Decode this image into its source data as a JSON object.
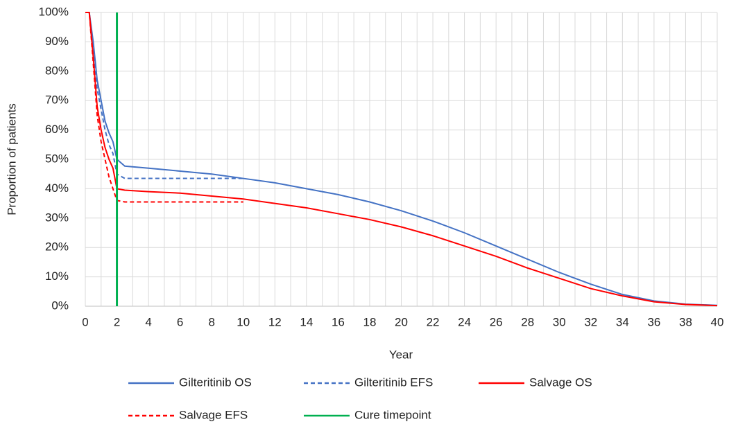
{
  "chart_data": {
    "type": "line",
    "x_label": "Year",
    "y_label": "Proportion of patients",
    "x": [
      0,
      0.25,
      0.5,
      0.75,
      1,
      1.25,
      1.5,
      1.75,
      2,
      2.5,
      4,
      6,
      8,
      10,
      12,
      14,
      16,
      18,
      20,
      22,
      24,
      26,
      28,
      30,
      32,
      34,
      36,
      38,
      40
    ],
    "series": [
      {
        "name": "Gilteritinib OS",
        "color": "#4472c4",
        "dash": false,
        "values": [
          100,
          100,
          90,
          77,
          70,
          63,
          59,
          56,
          50,
          47.7,
          47,
          46,
          45,
          43.5,
          42,
          40,
          38,
          35.5,
          32.5,
          29,
          25,
          20.5,
          16,
          11.5,
          7.5,
          4,
          1.8,
          0.7,
          0.3
        ]
      },
      {
        "name": "Gilteritinib EFS",
        "color": "#4472c4",
        "dash": true,
        "values": [
          100,
          100,
          88,
          74,
          67,
          60,
          55,
          52,
          45,
          43.5,
          43.5,
          43.5,
          43.5,
          43.5,
          null,
          null,
          null,
          null,
          null,
          null,
          null,
          null,
          null,
          null,
          null,
          null,
          null,
          null,
          null
        ]
      },
      {
        "name": "Salvage OS",
        "color": "#ff0000",
        "dash": false,
        "values": [
          100,
          100,
          85,
          68,
          60,
          54,
          50,
          47,
          40,
          39.5,
          39,
          38.5,
          37.5,
          36.5,
          35,
          33.5,
          31.5,
          29.5,
          27,
          24,
          20.5,
          17,
          13,
          9.5,
          6,
          3.5,
          1.5,
          0.6,
          0.2
        ]
      },
      {
        "name": "Salvage EFS",
        "color": "#ff0000",
        "dash": true,
        "values": [
          100,
          100,
          83,
          65,
          56,
          50,
          44,
          40,
          36,
          35.5,
          35.5,
          35.5,
          35.5,
          35.5,
          null,
          null,
          null,
          null,
          null,
          null,
          null,
          null,
          null,
          null,
          null,
          null,
          null,
          null,
          null
        ]
      },
      {
        "name": "Cure timepoint",
        "color": "#00b050",
        "dash": false,
        "x": [
          2,
          2
        ],
        "values": [
          0,
          100
        ]
      }
    ],
    "xlim": [
      0,
      40
    ],
    "ylim": [
      0,
      100
    ],
    "xticks": [
      0,
      2,
      4,
      6,
      8,
      10,
      12,
      14,
      16,
      18,
      20,
      22,
      24,
      26,
      28,
      30,
      32,
      34,
      36,
      38,
      40
    ],
    "x_minor_grid": [
      1,
      3,
      5,
      7,
      9,
      11,
      13,
      15,
      17,
      19,
      21,
      23,
      25,
      27,
      29,
      31,
      33,
      35,
      37,
      39
    ],
    "yticks": [
      {
        "value": 0,
        "label": "0%"
      },
      {
        "value": 10,
        "label": "10%"
      },
      {
        "value": 20,
        "label": "20%"
      },
      {
        "value": 30,
        "label": "30%"
      },
      {
        "value": 40,
        "label": "40%"
      },
      {
        "value": 50,
        "label": "50%"
      },
      {
        "value": 60,
        "label": "60%"
      },
      {
        "value": 70,
        "label": "70%"
      },
      {
        "value": 80,
        "label": "80%"
      },
      {
        "value": 90,
        "label": "90%"
      },
      {
        "value": 100,
        "label": "100%"
      }
    ],
    "grid": true
  }
}
